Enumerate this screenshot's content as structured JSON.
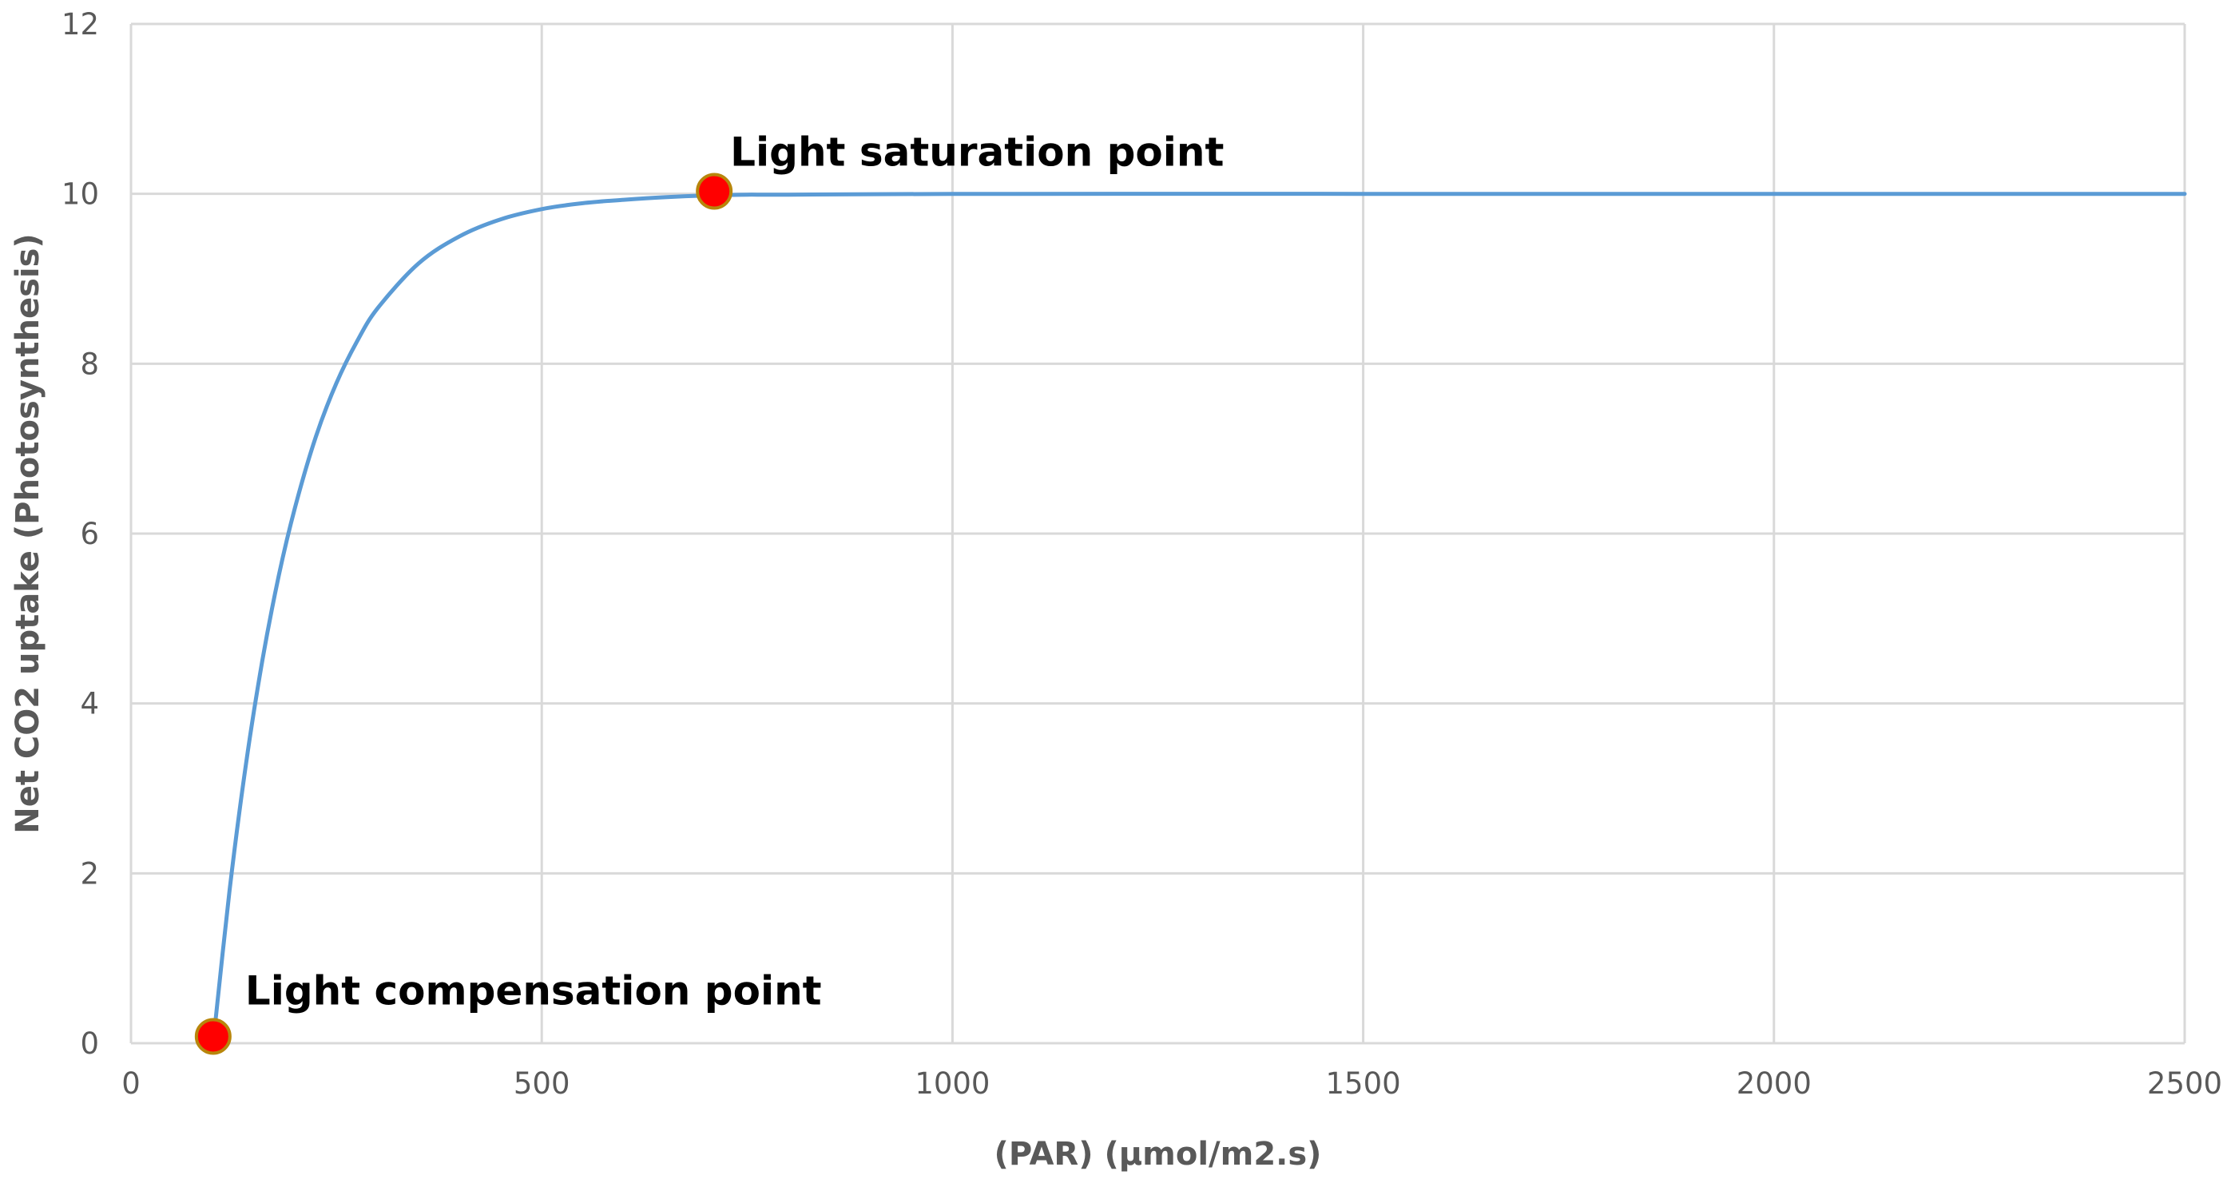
{
  "chart_data": {
    "type": "line",
    "title": "",
    "xlabel": "(PAR) (µmol/m2.s)",
    "ylabel": "Net CO2 uptake (Photosynthesis)",
    "xlim": [
      0,
      2500
    ],
    "ylim": [
      0,
      12
    ],
    "xticks": [
      0,
      500,
      1000,
      1500,
      2000,
      2500
    ],
    "yticks": [
      0,
      2,
      4,
      6,
      8,
      10,
      12
    ],
    "grid": true,
    "legend": "none",
    "series": [
      {
        "x": [
          100,
          120,
          140,
          160,
          180,
          200,
          225,
          250,
          275,
          300,
          350,
          400,
          450,
          500,
          550,
          600,
          650,
          700,
          750,
          800,
          1000,
          1500,
          2000,
          2500
        ],
        "y": [
          0,
          1.8,
          3.29,
          4.51,
          5.51,
          6.32,
          7.14,
          7.77,
          8.26,
          8.65,
          9.18,
          9.5,
          9.7,
          9.82,
          9.89,
          9.93,
          9.96,
          9.98,
          9.99,
          9.99,
          10.0,
          10.0,
          10.0,
          10.0
        ],
        "color": "#5b9bd5"
      }
    ],
    "points": [
      {
        "x": 100,
        "y": 0.08,
        "label": "Light compensation point",
        "label_pos": "upper-right"
      },
      {
        "x": 710,
        "y": 10.03,
        "label": "Light saturation point",
        "label_pos": "above-right"
      }
    ],
    "marker_color": "#ff0000",
    "marker_stroke": "#b8860b"
  }
}
